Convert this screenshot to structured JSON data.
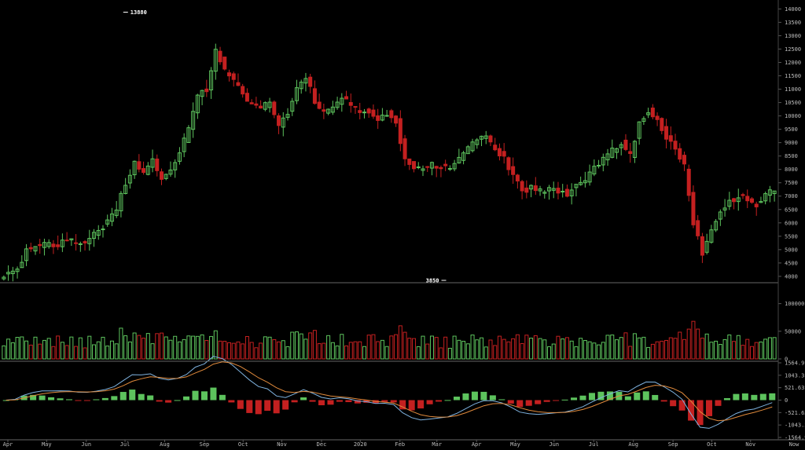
{
  "chart_data": {
    "type": "candlestick",
    "price_axis": {
      "ticks": [
        4000,
        4500,
        5000,
        5500,
        6000,
        6500,
        7000,
        7500,
        8000,
        8500,
        9000,
        9500,
        10000,
        10500,
        11000,
        11500,
        12000,
        12500,
        13000,
        13500,
        14000
      ],
      "range": [
        3850,
        14100
      ]
    },
    "volume_axis": {
      "ticks": [
        0,
        50000,
        100000
      ],
      "range": [
        0,
        135000
      ]
    },
    "macd_axis": {
      "ticks": [
        1564.9,
        1043.3,
        521.63,
        0,
        -521.63,
        -1043.3,
        -1564.9
      ],
      "tick_labels": [
        "1564.9",
        "1043.3",
        "521.63",
        "0",
        "-521.63",
        "-1043.3",
        "-1564.9"
      ],
      "range": [
        -1564.9,
        1564.9
      ]
    },
    "x_axis": {
      "labels": [
        "Apr",
        "May",
        "Jun",
        "Jul",
        "Aug",
        "Sep",
        "Oct",
        "Nov",
        "Dec",
        "2020",
        "Feb",
        "Mar",
        "Apr",
        "May",
        "Jun",
        "Jul",
        "Aug",
        "Sep",
        "Oct",
        "Nov"
      ],
      "label_week_index": [
        0,
        4.3,
        8.7,
        13,
        17.4,
        21.8,
        26.1,
        30.4,
        34.8,
        39.1,
        43.5,
        47.6,
        52,
        56.3,
        60.6,
        65,
        69.4,
        73.8,
        78.1,
        82.4
      ],
      "extra_label": "Now",
      "week_count": 86
    },
    "annotations": [
      {
        "text": "13880",
        "week": 13,
        "price": 13880
      },
      {
        "text": "3850",
        "week": 49,
        "price": 3850
      }
    ],
    "series": {
      "close": [
        4100,
        4250,
        5000,
        5100,
        5200,
        5150,
        5250,
        5300,
        5200,
        5400,
        5700,
        6000,
        6500,
        7500,
        8200,
        7800,
        8300,
        7600,
        8000,
        8700,
        9500,
        10800,
        11000,
        12500,
        11700,
        11300,
        10800,
        10400,
        10200,
        10600,
        9600,
        10100,
        11000,
        11500,
        10500,
        10100,
        10300,
        10700,
        10400,
        10100,
        10200,
        9900,
        10100,
        9800,
        8300,
        8100,
        8000,
        8200,
        8100,
        8000,
        8400,
        8800,
        9100,
        9200,
        8800,
        8400,
        7800,
        7200,
        7300,
        7200,
        7250,
        7200,
        7100,
        7350,
        7600,
        8100,
        8400,
        8700,
        9000,
        8500,
        9800,
        10200,
        9900,
        9200,
        8800,
        8100,
        6000,
        4900,
        5800,
        6400,
        6800,
        7000,
        6900,
        6700,
        7100,
        7300
      ]
    },
    "ylabel": "",
    "xlabel": ""
  },
  "colors": {
    "up": "#5dc35d",
    "down": "#c42020",
    "macd_line": "#7fb3e0",
    "signal_line": "#e08a3c",
    "axis_text": "#bbbbbb",
    "grid": "#555555"
  }
}
